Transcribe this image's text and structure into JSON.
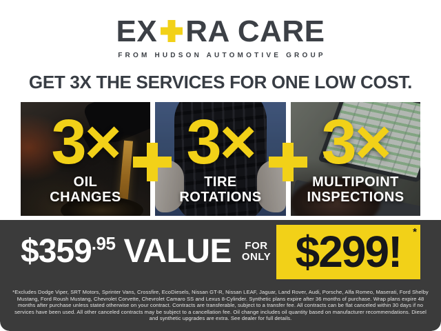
{
  "brand": {
    "name_prefix": "EX",
    "plus_symbol": "+",
    "name_suffix": "RA CARE",
    "subtitle": "FROM HUDSON AUTOMOTIVE GROUP"
  },
  "headline": "GET 3X THE SERVICES FOR ONE LOW COST.",
  "services": {
    "separator_icon": "plus-icon",
    "separator_symbol": "+",
    "panels": [
      {
        "multiplier": "3×",
        "label_line1": "OIL",
        "label_line2": "CHANGES",
        "photo": "oil-pouring-photo"
      },
      {
        "multiplier": "3×",
        "label_line1": "TIRE",
        "label_line2": "ROTATIONS",
        "photo": "hands-holding-tire-photo"
      },
      {
        "multiplier": "3×",
        "label_line1": "MULTIPOINT",
        "label_line2": "INSPECTIONS",
        "photo": "technician-laptop-checklist-photo"
      }
    ]
  },
  "offer": {
    "value_amount": "$359",
    "value_cents": ".95",
    "value_word": "VALUE",
    "for_label": "FOR",
    "only_label": "ONLY",
    "price": "$299!",
    "price_asterisk": "*"
  },
  "disclaimer": "*Excludes Dodge Viper, SRT Motors, Sprinter Vans, Crossfire, EcoDiesels, Nissan GT-R, Nissan LEAF, Jaguar, Land Rover, Audi, Porsche, Alfa Romeo, Maserati, Ford Shelby Mustang, Ford Roush Mustang, Chevrolet Corvette, Chevrolet Camaro SS and Lexus 8-Cylinder. Synthetic plans expire after 36 months of purchase. Wrap plans expire 48 months after purchase unless stated otherwise on your contract. Contracts are transferable, subject to a transfer fee. All contracts can be flat canceled within 30 days if no services have been used. All other canceled contracts may be subject to a cancellation fee. Oil change includes oil quantity based on manufacturer recommendations. Diesel and synthetic upgrades are extra. See dealer for full details.",
  "colors": {
    "accent_yellow": "#F2D118",
    "band_gray": "#3B3B3B",
    "ink_dark": "#3C4046",
    "price_ink": "#17171A"
  }
}
